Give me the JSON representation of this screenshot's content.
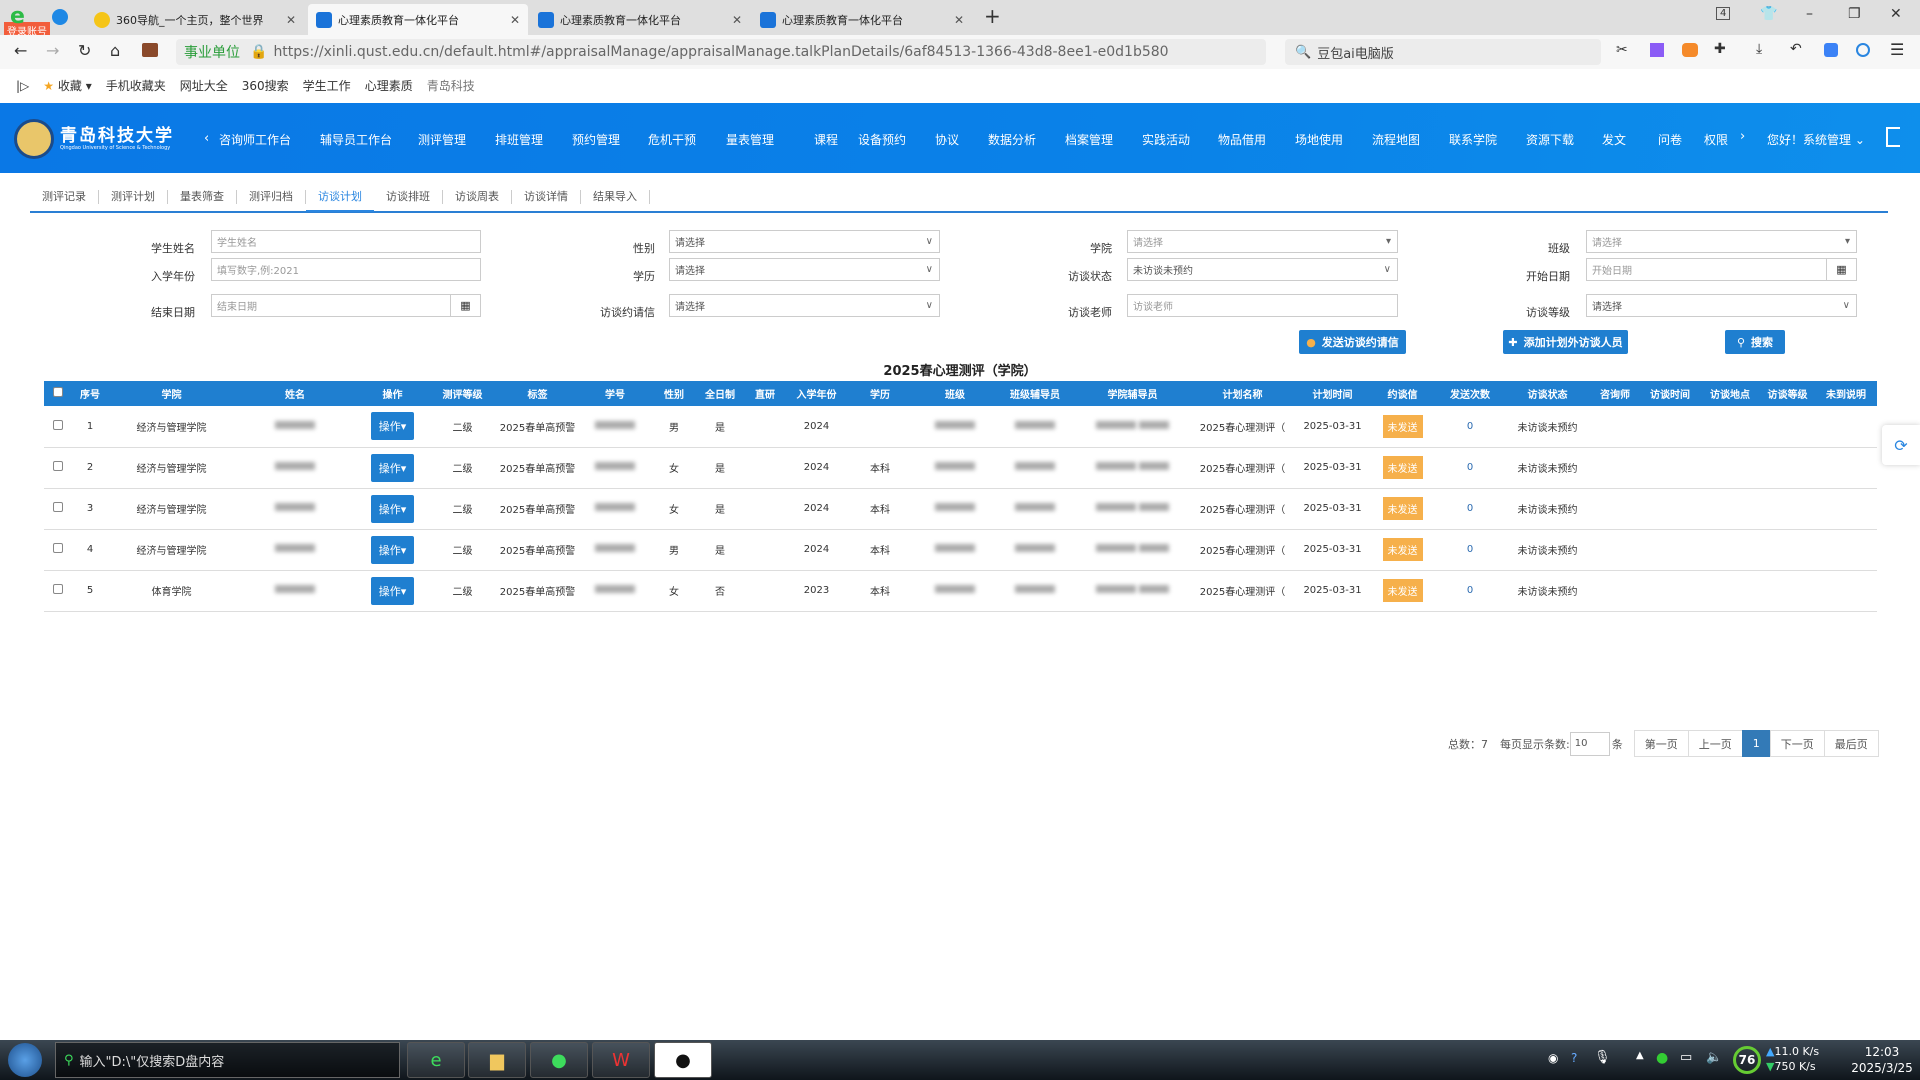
{
  "browser": {
    "badge": "登录账号",
    "tabs": [
      {
        "title": "360导航_一个主页，整个世界"
      },
      {
        "title": "心理素质教育一体化平台",
        "active": true
      },
      {
        "title": "心理素质教育一体化平台"
      },
      {
        "title": "心理素质教育一体化平台"
      }
    ],
    "tab_count": "4",
    "cert": "事业单位",
    "url": "https://xinli.qust.edu.cn/default.html#/appraisalManage/appraisalManage.talkPlanDetails/6af84513-1366-43d8-8ee1-e0d1b580",
    "search": "豆包ai电脑版",
    "bookmarks": [
      "收藏",
      "手机收藏夹",
      "网址大全",
      "360搜索",
      "学生工作",
      "心理素质",
      "青岛科技"
    ]
  },
  "nav": {
    "logo": "青岛科技大学",
    "logo_sub": "Qingdao University of Science & Technology",
    "items": [
      "咨询师工作台",
      "辅导员工作台",
      "测评管理",
      "排班管理",
      "预约管理",
      "危机干预",
      "量表管理",
      "课程",
      "设备预约",
      "协议",
      "数据分析",
      "档案管理",
      "实践活动",
      "物品借用",
      "场地使用",
      "流程地图",
      "联系学院",
      "资源下载",
      "发文",
      "问卷",
      "权限"
    ],
    "user": "您好！系统管理"
  },
  "subtabs": [
    {
      "label": "测评记录"
    },
    {
      "label": "测评计划"
    },
    {
      "label": "量表筛查"
    },
    {
      "label": "测评归档"
    },
    {
      "label": "访谈计划",
      "active": true
    },
    {
      "label": "访谈排班"
    },
    {
      "label": "访谈周表"
    },
    {
      "label": "访谈详情"
    },
    {
      "label": "结果导入"
    }
  ],
  "filters": {
    "student_name": {
      "label": "学生姓名",
      "placeholder": "学生姓名"
    },
    "gender": {
      "label": "性别",
      "value": "请选择"
    },
    "college": {
      "label": "学院",
      "value": "请选择"
    },
    "class": {
      "label": "班级",
      "value": "请选择"
    },
    "year": {
      "label": "入学年份",
      "placeholder": "填写数字,例:2021"
    },
    "education": {
      "label": "学历",
      "value": "请选择"
    },
    "status": {
      "label": "访谈状态",
      "value": "未访谈未预约"
    },
    "start_date": {
      "label": "开始日期",
      "placeholder": "开始日期"
    },
    "end_date": {
      "label": "结束日期",
      "placeholder": "结束日期"
    },
    "letter": {
      "label": "访谈约请信",
      "value": "请选择"
    },
    "teacher": {
      "label": "访谈老师",
      "placeholder": "访谈老师"
    },
    "level": {
      "label": "访谈等级",
      "value": "请选择"
    }
  },
  "actions": {
    "send": "发送访谈约请信",
    "add": "添加计划外访谈人员",
    "search": "搜索"
  },
  "table": {
    "title": "2025春心理测评（学院）",
    "headers": [
      "序号",
      "学院",
      "姓名",
      "操作",
      "测评等级",
      "标签",
      "学号",
      "性别",
      "全日制",
      "直研",
      "入学年份",
      "学历",
      "班级",
      "班级辅导员",
      "学院辅导员",
      "计划名称",
      "计划时间",
      "约谈信",
      "发送次数",
      "访谈状态",
      "咨询师",
      "访谈时间",
      "访谈地点",
      "访谈等级",
      "未到说明"
    ],
    "op_label": "操作",
    "rows": [
      {
        "no": "1",
        "college": "经济与管理学院",
        "level": "二级",
        "tag": "2025春单高预警",
        "gender": "男",
        "fulltime": "是",
        "year": "2024",
        "edu": "",
        "plan": "2025春心理测评（",
        "date": "2025-03-31",
        "letter": "未发送",
        "count": "0",
        "status": "未访谈未预约"
      },
      {
        "no": "2",
        "college": "经济与管理学院",
        "level": "二级",
        "tag": "2025春单高预警",
        "gender": "女",
        "fulltime": "是",
        "year": "2024",
        "edu": "本科",
        "plan": "2025春心理测评（",
        "date": "2025-03-31",
        "letter": "未发送",
        "count": "0",
        "status": "未访谈未预约"
      },
      {
        "no": "3",
        "college": "经济与管理学院",
        "level": "二级",
        "tag": "2025春单高预警",
        "gender": "女",
        "fulltime": "是",
        "year": "2024",
        "edu": "本科",
        "plan": "2025春心理测评（",
        "date": "2025-03-31",
        "letter": "未发送",
        "count": "0",
        "status": "未访谈未预约"
      },
      {
        "no": "4",
        "college": "经济与管理学院",
        "level": "二级",
        "tag": "2025春单高预警",
        "gender": "男",
        "fulltime": "是",
        "year": "2024",
        "edu": "本科",
        "plan": "2025春心理测评（",
        "date": "2025-03-31",
        "letter": "未发送",
        "count": "0",
        "status": "未访谈未预约"
      },
      {
        "no": "5",
        "college": "体育学院",
        "level": "二级",
        "tag": "2025春单高预警",
        "gender": "女",
        "fulltime": "否",
        "year": "2023",
        "edu": "本科",
        "plan": "2025春心理测评（",
        "date": "2025-03-31",
        "letter": "未发送",
        "count": "0",
        "status": "未访谈未预约"
      }
    ]
  },
  "pager": {
    "total": "总数：7",
    "per_page_label": "每页显示条数:",
    "per_page": "10",
    "unit": "条",
    "first": "第一页",
    "prev": "上一页",
    "current": "1",
    "next": "下一页",
    "last": "最后页"
  },
  "taskbar": {
    "search": "输入\"D:\\\"仅搜索D盘内容",
    "score": "76",
    "up": "11.0 K/s",
    "down": "750 K/s",
    "time": "12:03",
    "date": "2025/3/25"
  },
  "colors": {
    "primary": "#1f7fd0",
    "nav": "#0a7de6",
    "badge": "#f6b04b"
  }
}
